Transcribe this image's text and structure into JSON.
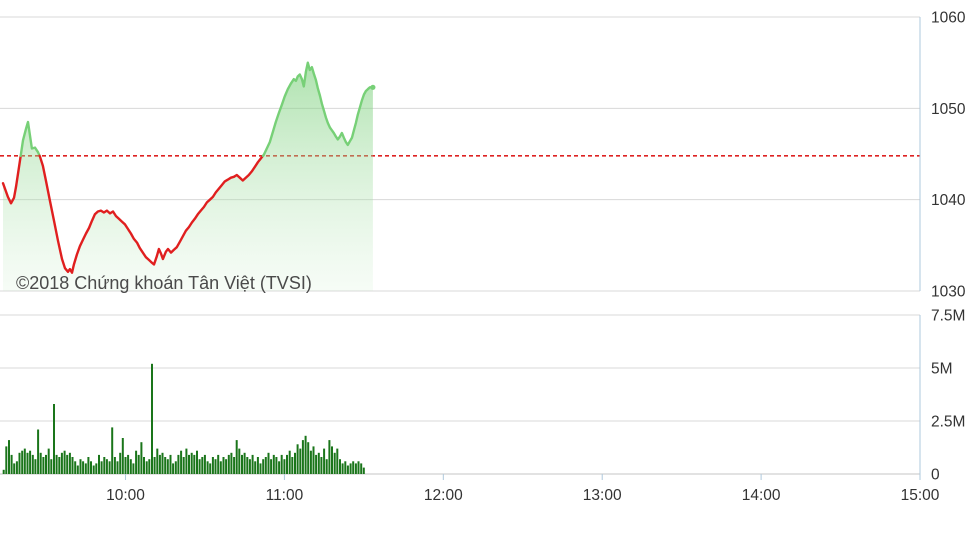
{
  "copyright": "©2018 Chứng khoán Tân Việt (TVSI)",
  "colors": {
    "background": "#ffffff",
    "line_up": "#77d077",
    "line_down": "#e01f1f",
    "reference": "#dd2222",
    "area_top": "rgba(118,206,118,0.60)",
    "area_bottom": "rgba(196,234,196,0.15)",
    "volume_bar": "#1a751a",
    "grid": "#d8d8d8",
    "axis_border": "#aec8dc",
    "axis_baseline": "#c6c6c6",
    "label_text": "#333333",
    "copyright_text": "#4a4a4a"
  },
  "chart_data": [
    {
      "type": "area",
      "title": "",
      "xlabel": "",
      "ylabel": "",
      "grid": true,
      "ylim": [
        1030,
        1060
      ],
      "y_ticks": [
        1060,
        1050,
        1040,
        1030
      ],
      "xlim_hours": [
        9.21,
        15.0
      ],
      "x_ticks": [
        {
          "hour": 10,
          "label": "10:00"
        },
        {
          "hour": 11,
          "label": "11:00"
        },
        {
          "hour": 12,
          "label": "12:00"
        },
        {
          "hour": 13,
          "label": "13:00"
        },
        {
          "hour": 14,
          "label": "14:00"
        },
        {
          "hour": 15,
          "label": "15:00"
        }
      ],
      "reference_value": 1044.8,
      "series": [
        {
          "name": "price",
          "points": [
            [
              9.229,
              1041.8
            ],
            [
              9.26,
              1040.3
            ],
            [
              9.279,
              1039.6
            ],
            [
              9.298,
              1040.2
            ],
            [
              9.311,
              1041.4
            ],
            [
              9.336,
              1044.3
            ],
            [
              9.355,
              1046.5
            ],
            [
              9.374,
              1047.8
            ],
            [
              9.386,
              1048.5
            ],
            [
              9.399,
              1047.0
            ],
            [
              9.411,
              1045.6
            ],
            [
              9.43,
              1045.7
            ],
            [
              9.449,
              1045.2
            ],
            [
              9.462,
              1044.7
            ],
            [
              9.48,
              1043.7
            ],
            [
              9.499,
              1042.1
            ],
            [
              9.524,
              1039.9
            ],
            [
              9.55,
              1037.7
            ],
            [
              9.575,
              1035.5
            ],
            [
              9.6,
              1033.5
            ],
            [
              9.619,
              1032.5
            ],
            [
              9.638,
              1032.1
            ],
            [
              9.65,
              1032.4
            ],
            [
              9.663,
              1032.0
            ],
            [
              9.675,
              1032.9
            ],
            [
              9.694,
              1034.0
            ],
            [
              9.713,
              1034.9
            ],
            [
              9.732,
              1035.6
            ],
            [
              9.751,
              1036.3
            ],
            [
              9.77,
              1036.9
            ],
            [
              9.789,
              1037.7
            ],
            [
              9.807,
              1038.4
            ],
            [
              9.826,
              1038.7
            ],
            [
              9.845,
              1038.8
            ],
            [
              9.864,
              1038.6
            ],
            [
              9.883,
              1038.8
            ],
            [
              9.902,
              1038.5
            ],
            [
              9.921,
              1038.7
            ],
            [
              9.94,
              1038.2
            ],
            [
              9.958,
              1037.9
            ],
            [
              9.977,
              1037.6
            ],
            [
              9.996,
              1037.3
            ],
            [
              10.015,
              1036.8
            ],
            [
              10.034,
              1036.3
            ],
            [
              10.053,
              1035.7
            ],
            [
              10.072,
              1035.3
            ],
            [
              10.09,
              1034.7
            ],
            [
              10.109,
              1034.2
            ],
            [
              10.128,
              1033.7
            ],
            [
              10.147,
              1033.4
            ],
            [
              10.166,
              1033.1
            ],
            [
              10.179,
              1032.9
            ],
            [
              10.197,
              1033.8
            ],
            [
              10.21,
              1034.6
            ],
            [
              10.223,
              1034.1
            ],
            [
              10.235,
              1033.5
            ],
            [
              10.254,
              1034.3
            ],
            [
              10.267,
              1034.6
            ],
            [
              10.286,
              1034.2
            ],
            [
              10.304,
              1034.5
            ],
            [
              10.323,
              1034.8
            ],
            [
              10.342,
              1035.4
            ],
            [
              10.361,
              1036.0
            ],
            [
              10.38,
              1036.6
            ],
            [
              10.399,
              1037.0
            ],
            [
              10.418,
              1037.5
            ],
            [
              10.436,
              1037.9
            ],
            [
              10.455,
              1038.4
            ],
            [
              10.474,
              1038.8
            ],
            [
              10.493,
              1039.2
            ],
            [
              10.512,
              1039.7
            ],
            [
              10.531,
              1040.0
            ],
            [
              10.55,
              1040.3
            ],
            [
              10.568,
              1040.8
            ],
            [
              10.587,
              1041.2
            ],
            [
              10.606,
              1041.6
            ],
            [
              10.625,
              1042.0
            ],
            [
              10.644,
              1042.2
            ],
            [
              10.663,
              1042.4
            ],
            [
              10.682,
              1042.5
            ],
            [
              10.7,
              1042.7
            ],
            [
              10.719,
              1042.4
            ],
            [
              10.738,
              1042.1
            ],
            [
              10.757,
              1042.4
            ],
            [
              10.776,
              1042.7
            ],
            [
              10.795,
              1043.1
            ],
            [
              10.814,
              1043.6
            ],
            [
              10.833,
              1044.1
            ],
            [
              10.851,
              1044.5
            ],
            [
              10.87,
              1044.9
            ],
            [
              10.889,
              1045.6
            ],
            [
              10.908,
              1046.3
            ],
            [
              10.927,
              1047.4
            ],
            [
              10.946,
              1048.5
            ],
            [
              10.965,
              1049.5
            ],
            [
              10.984,
              1050.4
            ],
            [
              11.002,
              1051.3
            ],
            [
              11.021,
              1052.1
            ],
            [
              11.04,
              1052.7
            ],
            [
              11.059,
              1053.2
            ],
            [
              11.072,
              1053.0
            ],
            [
              11.084,
              1053.5
            ],
            [
              11.097,
              1053.7
            ],
            [
              11.11,
              1053.2
            ],
            [
              11.122,
              1052.4
            ],
            [
              11.135,
              1054.0
            ],
            [
              11.147,
              1055.0
            ],
            [
              11.16,
              1054.2
            ],
            [
              11.173,
              1054.5
            ],
            [
              11.185,
              1053.8
            ],
            [
              11.198,
              1053.1
            ],
            [
              11.21,
              1052.2
            ],
            [
              11.223,
              1051.4
            ],
            [
              11.236,
              1050.5
            ],
            [
              11.248,
              1049.8
            ],
            [
              11.261,
              1049.0
            ],
            [
              11.273,
              1048.4
            ],
            [
              11.286,
              1047.9
            ],
            [
              11.299,
              1047.6
            ],
            [
              11.311,
              1047.3
            ],
            [
              11.324,
              1046.9
            ],
            [
              11.336,
              1046.6
            ],
            [
              11.349,
              1046.9
            ],
            [
              11.362,
              1047.3
            ],
            [
              11.374,
              1046.8
            ],
            [
              11.387,
              1046.3
            ],
            [
              11.399,
              1046.0
            ],
            [
              11.412,
              1046.4
            ],
            [
              11.425,
              1046.8
            ],
            [
              11.437,
              1047.6
            ],
            [
              11.45,
              1048.4
            ],
            [
              11.462,
              1049.3
            ],
            [
              11.475,
              1050.1
            ],
            [
              11.488,
              1050.9
            ],
            [
              11.5,
              1051.5
            ],
            [
              11.513,
              1051.9
            ],
            [
              11.525,
              1052.1
            ],
            [
              11.538,
              1052.3
            ],
            [
              11.557,
              1052.3
            ]
          ]
        }
      ]
    },
    {
      "type": "bar",
      "title": "",
      "ylim_millions": [
        0,
        7.5
      ],
      "y_ticks": [
        {
          "value_millions": 7.5,
          "label": "7.5M"
        },
        {
          "value_millions": 5,
          "label": "5M"
        },
        {
          "value_millions": 2.5,
          "label": "2.5M"
        },
        {
          "value_millions": 0,
          "label": "0"
        }
      ],
      "x_axis": "shared-with-price-chart",
      "bars": {
        "start_hour": 9.233,
        "step_minutes": 1,
        "values_millions": [
          0.2,
          1.3,
          1.6,
          0.9,
          0.5,
          0.6,
          1.0,
          1.1,
          1.2,
          1.0,
          1.1,
          0.9,
          0.7,
          2.1,
          1.0,
          0.8,
          0.9,
          1.2,
          0.7,
          3.3,
          0.9,
          0.8,
          1.0,
          1.1,
          0.9,
          1.0,
          0.8,
          0.6,
          0.4,
          0.7,
          0.6,
          0.5,
          0.8,
          0.6,
          0.4,
          0.5,
          0.9,
          0.6,
          0.8,
          0.7,
          0.6,
          2.2,
          0.8,
          0.6,
          1.0,
          1.7,
          0.8,
          0.9,
          0.7,
          0.5,
          1.1,
          0.9,
          1.5,
          0.8,
          0.6,
          0.7,
          5.2,
          0.8,
          1.2,
          0.9,
          1.0,
          0.8,
          0.7,
          0.9,
          0.5,
          0.6,
          0.9,
          1.1,
          0.8,
          1.2,
          0.9,
          1.0,
          0.9,
          1.1,
          0.7,
          0.8,
          0.9,
          0.6,
          0.5,
          0.8,
          0.7,
          0.9,
          0.6,
          0.8,
          0.7,
          0.9,
          1.0,
          0.8,
          1.6,
          1.2,
          0.9,
          1.0,
          0.8,
          0.7,
          0.9,
          0.6,
          0.8,
          0.5,
          0.7,
          0.8,
          1.0,
          0.7,
          0.9,
          0.8,
          0.6,
          0.9,
          0.7,
          0.9,
          1.1,
          0.8,
          1.0,
          1.4,
          1.2,
          1.6,
          1.8,
          1.5,
          1.1,
          1.3,
          0.9,
          1.0,
          0.8,
          1.2,
          0.7,
          1.6,
          1.3,
          1.0,
          1.2,
          0.7,
          0.5,
          0.6,
          0.4,
          0.5,
          0.6,
          0.5,
          0.6,
          0.5,
          0.3
        ]
      }
    }
  ]
}
